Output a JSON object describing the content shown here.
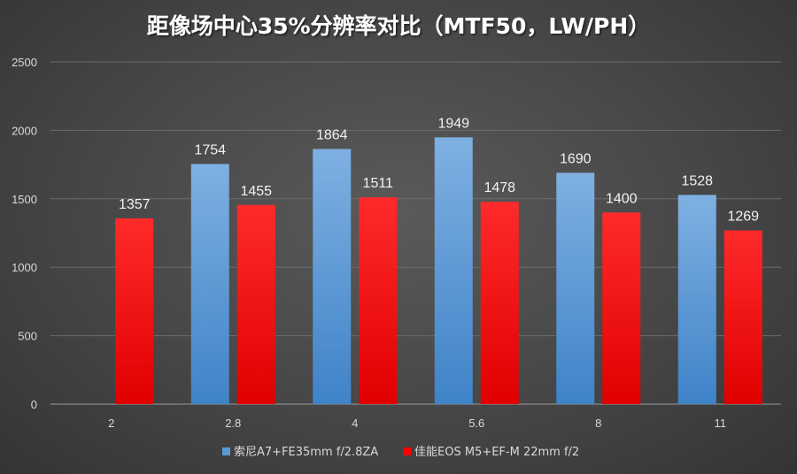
{
  "chart_data": {
    "type": "bar",
    "title": "距像场中心35%分辨率对比（MTF50，LW/PH）",
    "xlabel": "",
    "ylabel": "",
    "ylim": [
      0,
      2500
    ],
    "yticks": [
      0,
      500,
      1000,
      1500,
      2000,
      2500
    ],
    "grid": true,
    "legend_position": "bottom",
    "categories": [
      "2",
      "2.8",
      "4",
      "5.6",
      "8",
      "11"
    ],
    "series": [
      {
        "name": "索尼A7+FE35mm f/2.8ZA",
        "color": "#5b9bd5",
        "values": [
          null,
          1754,
          1864,
          1949,
          1690,
          1528
        ]
      },
      {
        "name": "佳能EOS M5+EF-M 22mm f/2",
        "color": "#ff0000",
        "values": [
          1357,
          1455,
          1511,
          1478,
          1400,
          1269
        ]
      }
    ]
  }
}
